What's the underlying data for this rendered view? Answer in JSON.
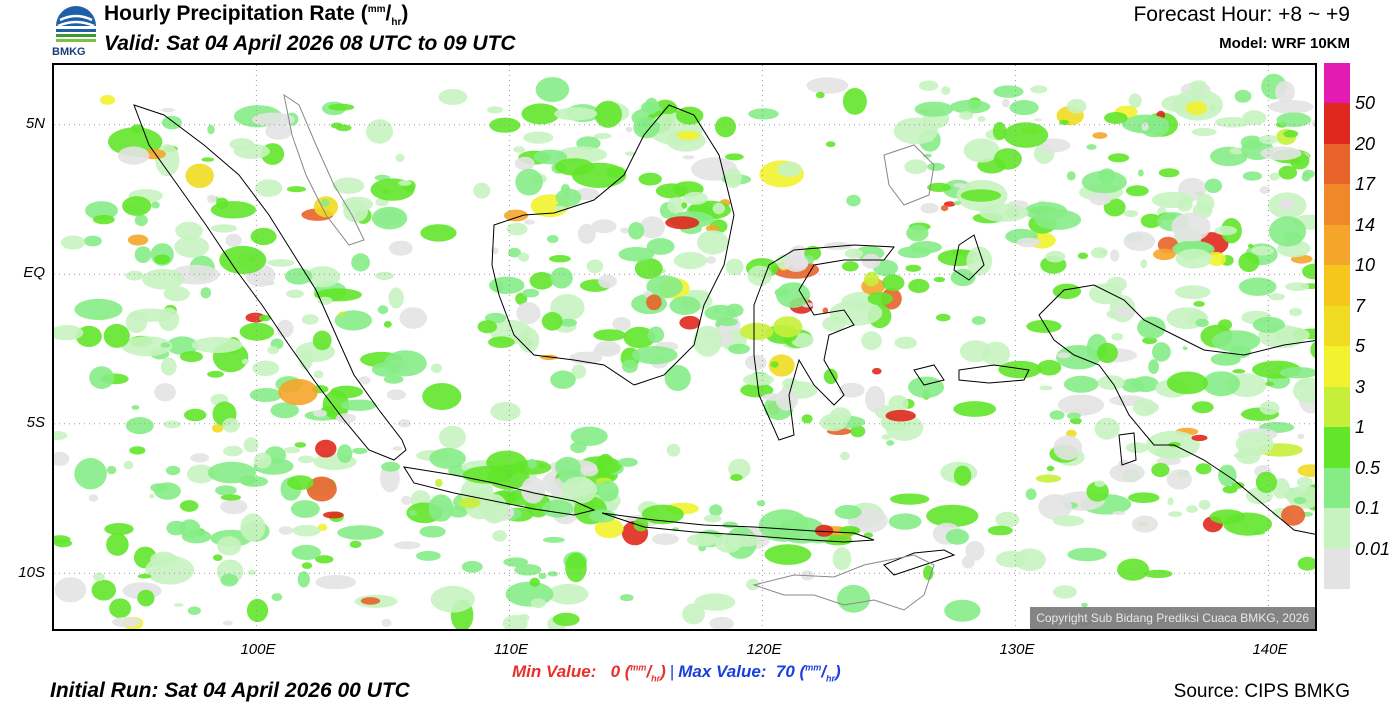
{
  "header": {
    "logo_label": "BMKG",
    "title": "Hourly Precipitation Rate",
    "title_unit_num": "mm",
    "title_unit_den": "hr",
    "valid": "Valid: Sat 04 April 2026 08 UTC to 09 UTC",
    "forecast_hour": "Forecast Hour: +8 ~ +9",
    "model": "Model: WRF 10KM"
  },
  "map": {
    "lat_labels": [
      "5N",
      "EQ",
      "5S",
      "10S"
    ],
    "lon_labels": [
      "100E",
      "110E",
      "120E",
      "130E",
      "140E"
    ],
    "copyright": "Copyright Sub Bidang Prediksi Cuaca BMKG, 2026",
    "extent": {
      "lon": [
        92,
        142
      ],
      "lat": [
        -12,
        7
      ]
    },
    "grid_lons": [
      100,
      110,
      120,
      130,
      140
    ],
    "grid_lats": [
      5,
      0,
      -5,
      -10
    ]
  },
  "legend": {
    "labels": [
      "50",
      "20",
      "17",
      "14",
      "10",
      "7",
      "5",
      "3",
      "1",
      "0.5",
      "0.1",
      "0.01"
    ],
    "colors": [
      "#e31ab4",
      "#e0281e",
      "#e8632a",
      "#f0882a",
      "#f4a52a",
      "#f4c61e",
      "#efdc22",
      "#f2f22e",
      "#c6ef3a",
      "#62e62a",
      "#86ec86",
      "#c6f3c0",
      "#e3e3e3"
    ]
  },
  "footer": {
    "min_label": "Min Value:",
    "min_value": "0",
    "max_label": "Max Value:",
    "max_value": "70",
    "unit_num": "mm",
    "unit_den": "hr",
    "initial_run": "Initial Run: Sat 04 April 2026 00 UTC",
    "source": "Source: CIPS BMKG"
  }
}
